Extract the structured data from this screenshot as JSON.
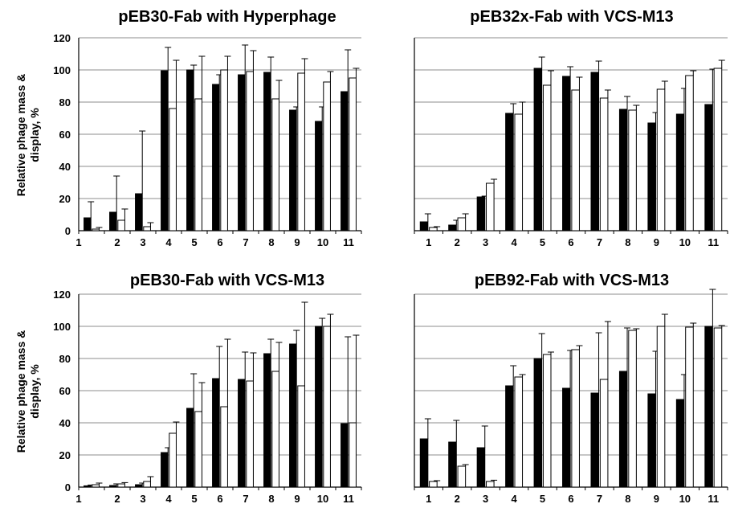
{
  "y_axis_label_line1": "Relative phage mass &",
  "y_axis_label_line2": "display, %",
  "chart_data": [
    {
      "type": "bar",
      "title": "pEB30-Fab with Hyperphage",
      "ylim": [
        0,
        120
      ],
      "yticks": [
        0,
        20,
        40,
        60,
        80,
        100,
        120
      ],
      "show_y_tick_labels": true,
      "categories": [
        "1",
        "2",
        "3",
        "4",
        "5",
        "6",
        "7",
        "8",
        "9",
        "10",
        "11"
      ],
      "colors": {
        "series1": "#000000",
        "series2": "#ffffff",
        "stroke": "#000000"
      },
      "series": [
        {
          "values": [
            8,
            11.5,
            23,
            99.5,
            100,
            91,
            97,
            98.5,
            75,
            68,
            86.5
          ],
          "errors": [
            10,
            22.5,
            39,
            14.5,
            3,
            6,
            18.5,
            9.5,
            2,
            9,
            26
          ]
        },
        {
          "values": [
            1,
            6.5,
            2.5,
            76,
            82,
            100,
            99,
            82,
            98,
            92.5,
            95
          ],
          "errors": [
            1,
            7,
            2.5,
            30,
            26.5,
            8.5,
            13,
            11.5,
            9,
            6.5,
            6
          ]
        }
      ]
    },
    {
      "type": "bar",
      "title": "pEB32x-Fab with VCS-M13",
      "ylim": [
        0,
        120
      ],
      "yticks": [
        0,
        20,
        40,
        60,
        80,
        100,
        120
      ],
      "show_y_tick_labels": false,
      "categories": [
        "1",
        "2",
        "3",
        "4",
        "5",
        "6",
        "7",
        "8",
        "9",
        "10",
        "11"
      ],
      "colors": {
        "series1": "#000000",
        "series2": "#ffffff",
        "stroke": "#000000"
      },
      "series": [
        {
          "values": [
            5.5,
            3.5,
            21,
            73,
            101,
            96,
            98.5,
            75.5,
            67,
            72.5,
            78.5
          ],
          "errors": [
            5,
            3,
            0.5,
            6,
            7,
            6,
            7,
            8,
            6.5,
            16,
            22
          ]
        },
        {
          "values": [
            2,
            8,
            29.5,
            72.5,
            90.5,
            87.5,
            82.5,
            75,
            88,
            96.5,
            101
          ],
          "errors": [
            0.5,
            2.5,
            2.5,
            7.5,
            9,
            8,
            5,
            3,
            5,
            3,
            5
          ]
        }
      ]
    },
    {
      "type": "bar",
      "title": "pEB30-Fab with VCS-M13",
      "ylim": [
        0,
        120
      ],
      "yticks": [
        0,
        20,
        40,
        60,
        80,
        100,
        120
      ],
      "show_y_tick_labels": true,
      "categories": [
        "1",
        "2",
        "3",
        "4",
        "5",
        "6",
        "7",
        "8",
        "9",
        "10",
        "11"
      ],
      "colors": {
        "series1": "#000000",
        "series2": "#ffffff",
        "stroke": "#000000"
      },
      "series": [
        {
          "values": [
            0.8,
            1,
            1.5,
            21.5,
            49,
            67.5,
            67,
            83,
            89,
            100,
            39.5
          ],
          "errors": [
            0.5,
            1,
            1,
            3,
            21.5,
            20,
            17,
            9,
            8.5,
            5,
            54
          ]
        },
        {
          "values": [
            1.5,
            2,
            3.5,
            33.5,
            47,
            50,
            66,
            72,
            63,
            100,
            40
          ],
          "errors": [
            1,
            0.8,
            3,
            7,
            18,
            42,
            17.5,
            18,
            52,
            7.5,
            54.5
          ]
        }
      ]
    },
    {
      "type": "bar",
      "title": "pEB92-Fab with VCS-M13",
      "ylim": [
        0,
        120
      ],
      "yticks": [
        0,
        20,
        40,
        60,
        80,
        100,
        120
      ],
      "show_y_tick_labels": false,
      "categories": [
        "1",
        "2",
        "3",
        "4",
        "5",
        "6",
        "7",
        "8",
        "9",
        "10",
        "11"
      ],
      "colors": {
        "series1": "#000000",
        "series2": "#ffffff",
        "stroke": "#000000"
      },
      "series": [
        {
          "values": [
            30,
            28,
            24.5,
            63,
            80,
            61.5,
            58.5,
            72,
            58,
            54.5,
            100
          ],
          "errors": [
            12.5,
            13.5,
            13.5,
            12.5,
            15.5,
            23.5,
            37.5,
            27,
            26.5,
            15.5,
            25
          ]
        },
        {
          "values": [
            3.5,
            13,
            3.5,
            68.5,
            82.5,
            85.5,
            67,
            97.5,
            100,
            99.5,
            99
          ],
          "errors": [
            0.5,
            1,
            0.8,
            1.5,
            1.5,
            2.5,
            36,
            1,
            7.5,
            2.5,
            1.5
          ]
        }
      ]
    }
  ]
}
